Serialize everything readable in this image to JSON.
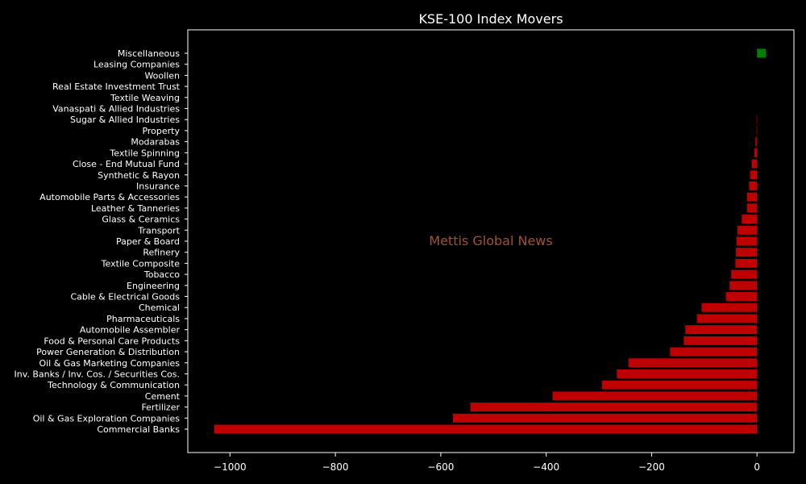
{
  "chart_data": {
    "type": "bar",
    "orientation": "horizontal",
    "title": "KSE-100 Index Movers",
    "watermark": "Mettis Global News",
    "xlim": [
      -1080,
      70
    ],
    "xticks": [
      -1000,
      -800,
      -600,
      -400,
      -200,
      0
    ],
    "xtick_labels": [
      "−1000",
      "−800",
      "−600",
      "−400",
      "−200",
      "0"
    ],
    "grid": false,
    "colors": {
      "negative": "#c00000",
      "positive": "#008000",
      "background": "#000000",
      "text": "#ffffff",
      "watermark": "#a0522d"
    },
    "categories": [
      "Commercial Banks",
      "Oil & Gas Exploration Companies",
      "Fertilizer",
      "Cement",
      "Technology & Communication",
      "Inv. Banks / Inv. Cos. / Securities Cos.",
      "Oil & Gas Marketing Companies",
      "Power Generation & Distribution",
      "Food & Personal Care Products",
      "Automobile Assembler",
      "Pharmaceuticals",
      "Chemical",
      "Cable & Electrical Goods",
      "Engineering",
      "Tobacco",
      "Textile Composite",
      "Refinery",
      "Paper & Board",
      "Transport",
      "Glass & Ceramics",
      "Leather & Tanneries",
      "Automobile Parts & Accessories",
      "Insurance",
      "Synthetic & Rayon",
      "Close - End Mutual Fund",
      "Textile Spinning",
      "Modarabas",
      "Property",
      "Sugar & Allied Industries",
      "Vanaspati & Allied Industries",
      "Textile Weaving",
      "Real Estate Investment Trust",
      "Woollen",
      "Leasing Companies",
      "Miscellaneous"
    ],
    "values": [
      -1030,
      -577,
      -544,
      -388,
      -294,
      -266,
      -244,
      -165,
      -139,
      -136,
      -114,
      -105,
      -59,
      -52,
      -49,
      -41,
      -40,
      -39,
      -37,
      -29,
      -19,
      -19,
      -15,
      -13,
      -10,
      -5,
      -3,
      -1,
      -1,
      0,
      0,
      0,
      0,
      0,
      17
    ]
  }
}
